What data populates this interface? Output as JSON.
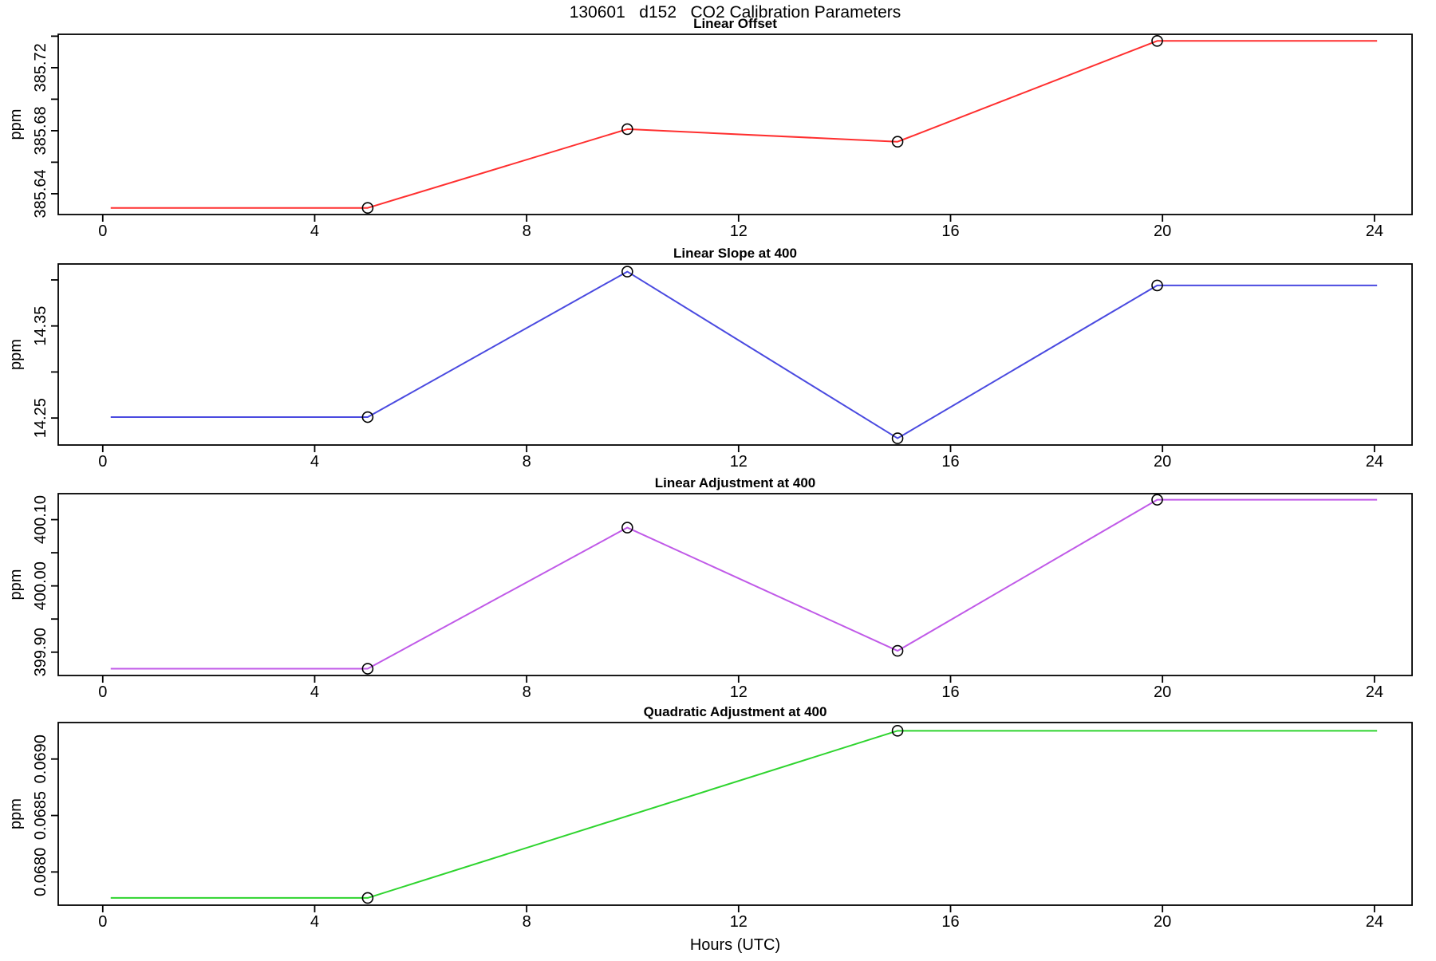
{
  "chart_data": {
    "type": "line",
    "title": "130601   d152   CO2 Calibration Parameters",
    "xlabel": "Hours (UTC)",
    "x_ticks": [
      "0",
      "4",
      "8",
      "12",
      "16",
      "20",
      "24"
    ],
    "x_tick_values": [
      0,
      4,
      8,
      12,
      16,
      20,
      24
    ],
    "xlim": [
      -0.84,
      24.71
    ],
    "marker_color": "#000000",
    "panels": [
      {
        "title": "Linear Offset",
        "ylabel": "ppm",
        "color": "#ff2f2f",
        "ylim": [
          385.6268,
          385.7412
        ],
        "y_tick_values": [
          385.64,
          385.66,
          385.68,
          385.7,
          385.72,
          385.74
        ],
        "y_tick_labels": [
          "385.64",
          "",
          "385.68",
          "",
          "385.72",
          ""
        ],
        "line": {
          "x": [
            0.15,
            5.0,
            9.9,
            15.0,
            19.9,
            24.05
          ],
          "y": [
            385.631,
            385.631,
            385.681,
            385.673,
            385.737,
            385.737
          ]
        },
        "points": {
          "x": [
            5.0,
            9.9,
            15.0,
            19.9
          ],
          "y": [
            385.631,
            385.681,
            385.673,
            385.737
          ]
        }
      },
      {
        "title": "Linear Slope at 400",
        "ylabel": "ppm",
        "color": "#4a4ae0",
        "ylim": [
          14.2207,
          14.4173
        ],
        "y_tick_values": [
          14.25,
          14.3,
          14.35,
          14.4
        ],
        "y_tick_labels": [
          "14.25",
          "",
          "14.35",
          ""
        ],
        "line": {
          "x": [
            0.15,
            5.0,
            9.9,
            15.0,
            19.9,
            24.05
          ],
          "y": [
            14.251,
            14.251,
            14.409,
            14.228,
            14.394,
            14.394
          ]
        },
        "points": {
          "x": [
            5.0,
            9.9,
            15.0,
            19.9
          ],
          "y": [
            14.251,
            14.409,
            14.228,
            14.394
          ]
        }
      },
      {
        "title": "Linear Adjustment at 400",
        "ylabel": "ppm",
        "color": "#c05ae8",
        "ylim": [
          399.8648,
          400.1392
        ],
        "y_tick_values": [
          399.9,
          399.95,
          400.0,
          400.05,
          400.1
        ],
        "y_tick_labels": [
          "399.90",
          "",
          "400.00",
          "",
          "400.10"
        ],
        "line": {
          "x": [
            0.15,
            5.0,
            9.9,
            15.0,
            19.9,
            24.05
          ],
          "y": [
            399.875,
            399.875,
            400.088,
            399.902,
            400.13,
            400.13
          ]
        },
        "points": {
          "x": [
            5.0,
            9.9,
            15.0,
            19.9
          ],
          "y": [
            399.875,
            400.088,
            399.902,
            400.13
          ]
        }
      },
      {
        "title": "Quadratic Adjustment at 400",
        "ylabel": "ppm",
        "color": "#2ed42e",
        "ylim": [
          0.067706,
          0.069323
        ],
        "y_tick_values": [
          0.068,
          0.0685,
          0.069
        ],
        "y_tick_labels": [
          "0.0680",
          "0.0685",
          "0.0690"
        ],
        "line": {
          "x": [
            0.15,
            5.0,
            15.0,
            24.05
          ],
          "y": [
            0.06777,
            0.06777,
            0.06925,
            0.06925
          ]
        },
        "points": {
          "x": [
            5.0,
            15.0
          ],
          "y": [
            0.06777,
            0.06925
          ]
        }
      }
    ]
  }
}
